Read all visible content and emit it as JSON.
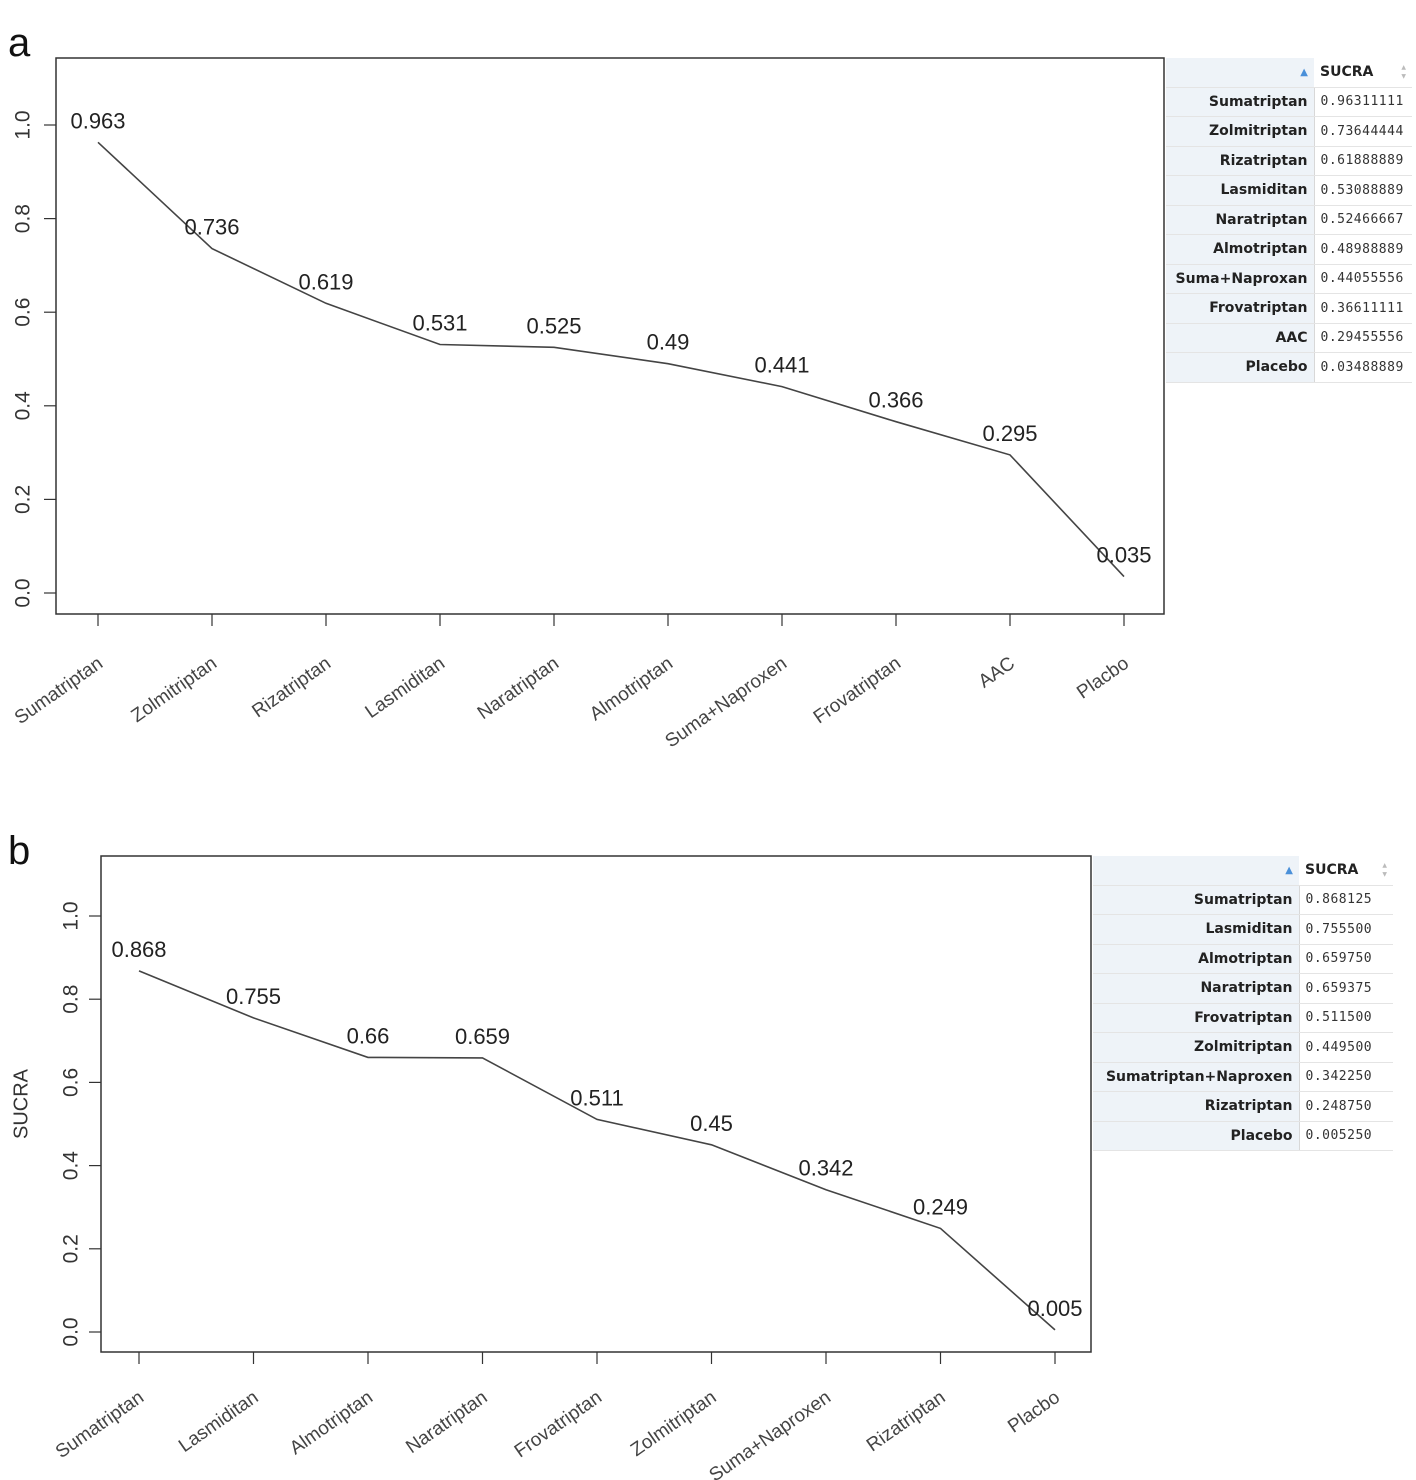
{
  "chart_data": [
    {
      "type": "line",
      "panel_label": "a",
      "ylabel": "",
      "yticks": [
        "0.0",
        "0.2",
        "0.4",
        "0.6",
        "0.8",
        "1.0"
      ],
      "ylim": [
        0,
        1.1
      ],
      "categories": [
        "Sumatriptan",
        "Zolmitriptan",
        "Rizatriptan",
        "Lasmiditan",
        "Naratriptan",
        "Almotriptan",
        "Suma+Naproxen",
        "Frovatriptan",
        "AAC",
        "Placbo"
      ],
      "values": [
        0.963,
        0.736,
        0.619,
        0.531,
        0.525,
        0.49,
        0.441,
        0.366,
        0.295,
        0.035
      ],
      "labels": [
        "0.963",
        "0.736",
        "0.619",
        "0.531",
        "0.525",
        "0.49",
        "0.441",
        "0.366",
        "0.295",
        "0.035"
      ],
      "table": {
        "header": "SUCRA",
        "rows": [
          {
            "name": "Sumatriptan",
            "value": "0.96311111"
          },
          {
            "name": "Zolmitriptan",
            "value": "0.73644444"
          },
          {
            "name": "Rizatriptan",
            "value": "0.61888889"
          },
          {
            "name": "Lasmiditan",
            "value": "0.53088889"
          },
          {
            "name": "Naratriptan",
            "value": "0.52466667"
          },
          {
            "name": "Almotriptan",
            "value": "0.48988889"
          },
          {
            "name": "Suma+Naproxan",
            "value": "0.44055556"
          },
          {
            "name": "Frovatriptan",
            "value": "0.36611111"
          },
          {
            "name": "AAC",
            "value": "0.29455556"
          },
          {
            "name": "Placebo",
            "value": "0.03488889"
          }
        ]
      }
    },
    {
      "type": "line",
      "panel_label": "b",
      "ylabel": "SUCRA",
      "yticks": [
        "0.0",
        "0.2",
        "0.4",
        "0.6",
        "0.8",
        "1.0"
      ],
      "ylim": [
        0,
        1.1
      ],
      "categories": [
        "Sumatriptan",
        "Lasmiditan",
        "Almotriptan",
        "Naratriptan",
        "Frovatriptan",
        "Zolmitriptan",
        "Suma+Naproxen",
        "Rizatriptan",
        "Placbo"
      ],
      "values": [
        0.868,
        0.755,
        0.66,
        0.659,
        0.511,
        0.45,
        0.342,
        0.249,
        0.005
      ],
      "labels": [
        "0.868",
        "0.755",
        "0.66",
        "0.659",
        "0.511",
        "0.45",
        "0.342",
        "0.249",
        "0.005"
      ],
      "table": {
        "header": "SUCRA",
        "rows": [
          {
            "name": "Sumatriptan",
            "value": "0.868125"
          },
          {
            "name": "Lasmiditan",
            "value": "0.755500"
          },
          {
            "name": "Almotriptan",
            "value": "0.659750"
          },
          {
            "name": "Naratriptan",
            "value": "0.659375"
          },
          {
            "name": "Frovatriptan",
            "value": "0.511500"
          },
          {
            "name": "Zolmitriptan",
            "value": "0.449500"
          },
          {
            "name": "Sumatriptan+Naproxen",
            "value": "0.342250"
          },
          {
            "name": "Rizatriptan",
            "value": "0.248750"
          },
          {
            "name": "Placebo",
            "value": "0.005250"
          }
        ]
      }
    }
  ]
}
